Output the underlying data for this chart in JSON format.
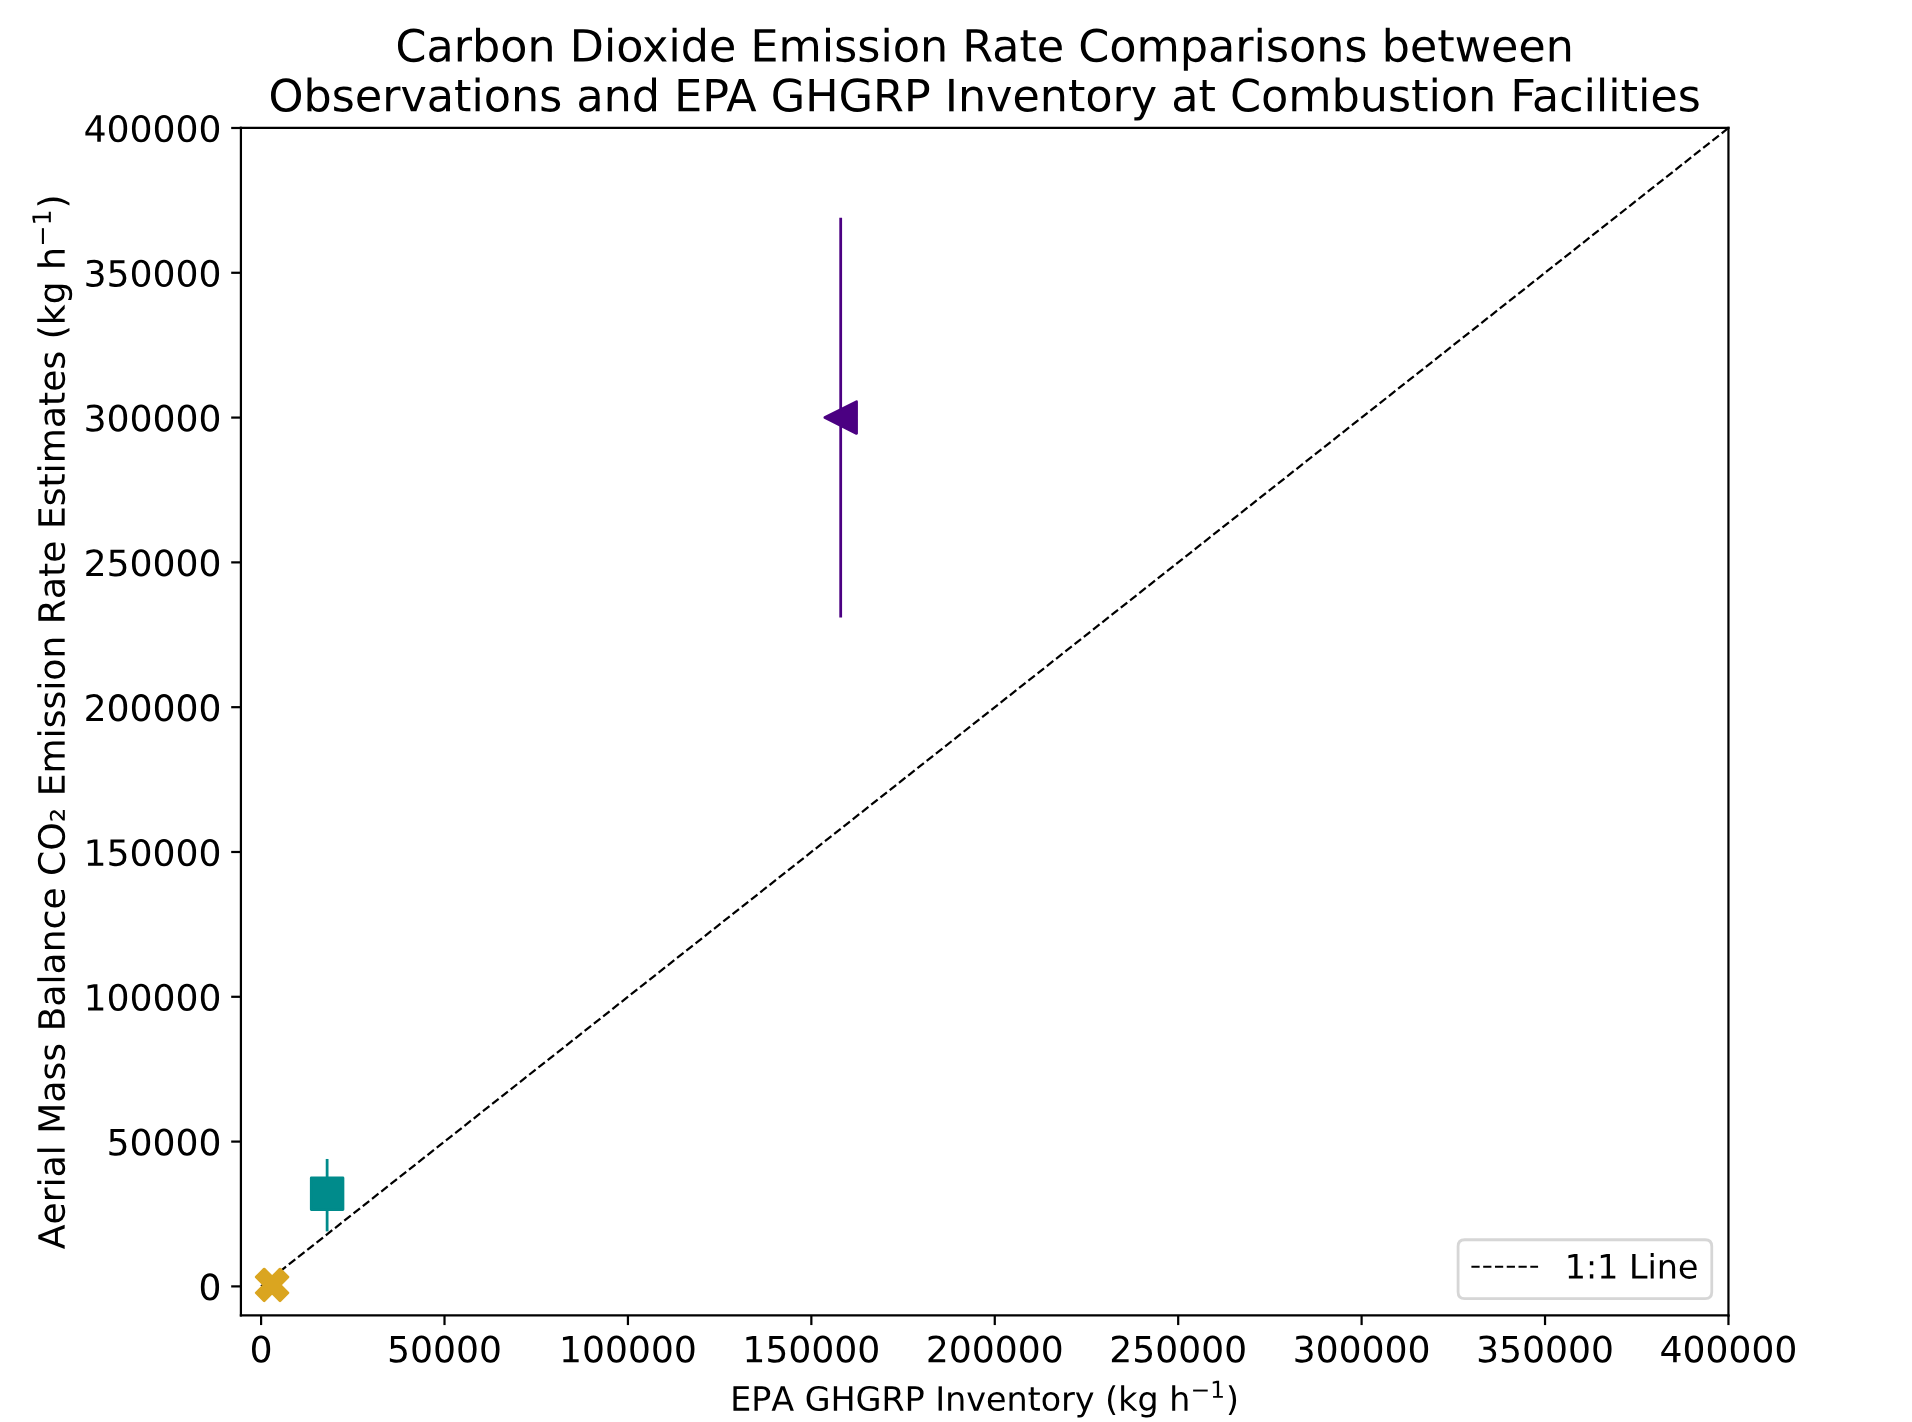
{
  "chart_data": {
    "type": "scatter",
    "title": "Carbon Dioxide Emission Rate Comparisons between\nObservations and EPA GHGRP Inventory at Combustion Facilities",
    "xlabel": "EPA GHGRP Inventory (kg h$^{−1}$)",
    "ylabel": "Aerial Mass Balance CO₂ Emission Rate Estimates (kg h$^{−1}$)",
    "series": [
      {
        "color": "#4b0082",
        "marker": "triangle",
        "x": [
          158000
        ],
        "values": [
          300000
        ],
        "errors": [
          [
            231000,
            369000
          ]
        ]
      },
      {
        "color": "#008b8b",
        "marker": "square",
        "x": [
          18000
        ],
        "values": [
          32000
        ],
        "errors": [
          [
            19000,
            44000
          ]
        ]
      },
      {
        "color": "#daa520",
        "marker": "cross",
        "x": [
          3000
        ],
        "values": [
          500
        ]
      },
      {
        "type": "line",
        "name": "1:1 Line",
        "color": "#000000",
        "line_style": "dashed",
        "marker": "none",
        "x": [
          0,
          400000
        ],
        "values": [
          0,
          400000
        ]
      }
    ],
    "xlim": [
      -5500,
      400000
    ],
    "ylim": [
      -10000,
      400000
    ],
    "xticks": [
      0,
      50000,
      100000,
      150000,
      200000,
      250000,
      300000,
      350000,
      400000
    ],
    "yticks": [
      0,
      50000,
      100000,
      150000,
      200000,
      250000,
      300000,
      350000,
      400000
    ],
    "grid": false,
    "legend": "bottom right"
  }
}
